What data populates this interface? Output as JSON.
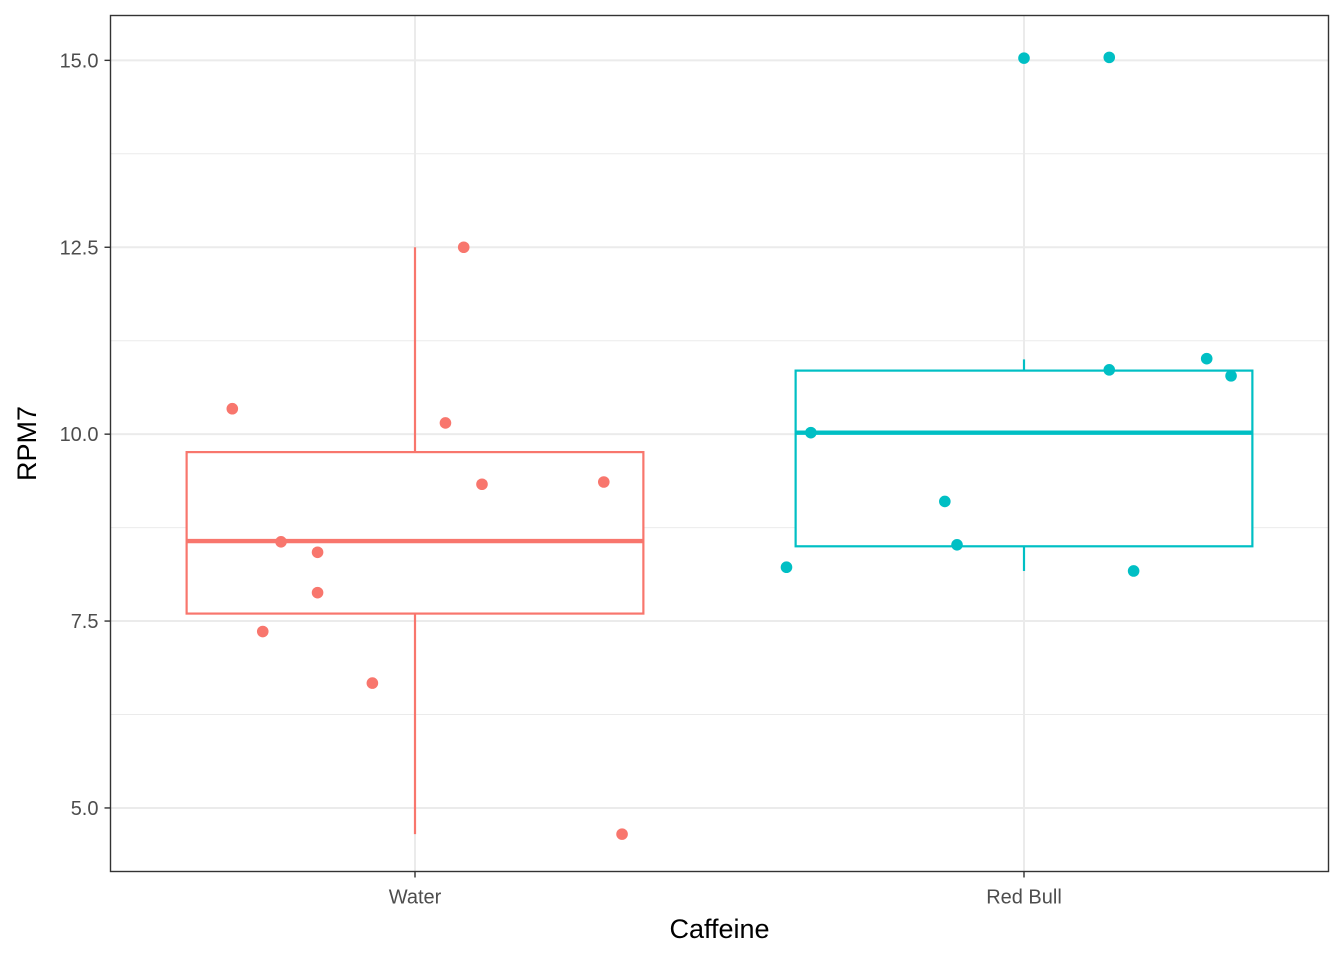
{
  "chart_data": {
    "type": "boxplot",
    "xlabel": "Caffeine",
    "ylabel": "RPM7",
    "categories": [
      "Water",
      "Red Bull"
    ],
    "ylim": [
      4.15,
      15.6
    ],
    "yticks": [
      5.0,
      7.5,
      10.0,
      12.5,
      15.0
    ],
    "ytick_labels": [
      "5.0",
      "7.5",
      "10.0",
      "12.5",
      "15.0"
    ],
    "grid": true,
    "legend": "none",
    "series": [
      {
        "category": "Water",
        "color": "#F8766D",
        "box": {
          "whisker_low": 4.65,
          "q1": 7.6,
          "median": 8.57,
          "q3": 9.76,
          "whisker_high": 12.5
        },
        "points": [
          {
            "jitter": -0.3,
            "y": 10.34
          },
          {
            "jitter": -0.25,
            "y": 7.36
          },
          {
            "jitter": -0.22,
            "y": 8.56
          },
          {
            "jitter": -0.16,
            "y": 7.88
          },
          {
            "jitter": -0.16,
            "y": 8.42
          },
          {
            "jitter": -0.07,
            "y": 6.67
          },
          {
            "jitter": 0.05,
            "y": 10.15
          },
          {
            "jitter": 0.08,
            "y": 12.5
          },
          {
            "jitter": 0.11,
            "y": 9.33
          },
          {
            "jitter": 0.31,
            "y": 9.36
          },
          {
            "jitter": 0.34,
            "y": 4.65
          }
        ]
      },
      {
        "category": "Red Bull",
        "color": "#00BFC4",
        "box": {
          "whisker_low": 8.17,
          "q1": 8.5,
          "median": 10.02,
          "q3": 10.85,
          "whisker_high": 11.0
        },
        "points": [
          {
            "jitter": -0.39,
            "y": 8.22
          },
          {
            "jitter": -0.35,
            "y": 10.02
          },
          {
            "jitter": -0.13,
            "y": 9.1
          },
          {
            "jitter": -0.11,
            "y": 8.52
          },
          {
            "jitter": 0.0,
            "y": 15.03
          },
          {
            "jitter": 0.14,
            "y": 15.04
          },
          {
            "jitter": 0.14,
            "y": 10.86
          },
          {
            "jitter": 0.18,
            "y": 8.17
          },
          {
            "jitter": 0.3,
            "y": 11.01
          },
          {
            "jitter": 0.34,
            "y": 10.78
          }
        ]
      }
    ]
  }
}
